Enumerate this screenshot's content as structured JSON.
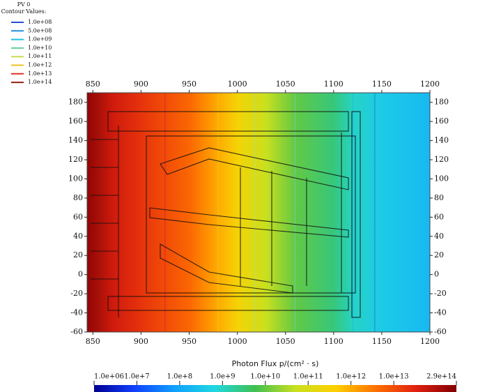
{
  "chart_data": {
    "type": "contour",
    "legend_title": "PV 0",
    "legend_subtitle": "Contour Values:",
    "contours": [
      {
        "value": 100000000,
        "label": "1.0e+08",
        "color": "#2050d0"
      },
      {
        "value": 500000000,
        "label": "5.0e+08",
        "color": "#2090e0"
      },
      {
        "value": 1000000000,
        "label": "1.0e+09",
        "color": "#20c0e0"
      },
      {
        "value": 10000000000,
        "label": "1.0e+10",
        "color": "#60d0a0"
      },
      {
        "value": 100000000000,
        "label": "1.0e+11",
        "color": "#c0e050"
      },
      {
        "value": 1000000000000,
        "label": "1.0e+12",
        "color": "#f0c020"
      },
      {
        "value": 10000000000000,
        "label": "1.0e+13",
        "color": "#e03020"
      },
      {
        "value": 100000000000000,
        "label": "1.0e+14",
        "color": "#902010"
      }
    ],
    "x": [
      844,
      870,
      900,
      950,
      980,
      1000,
      1030,
      1060,
      1100,
      1120,
      1150,
      1200
    ],
    "values": [
      200000000000000,
      50000000000000,
      20000000000000,
      5000000000000,
      1000000000000,
      300000000000,
      50000000000,
      10000000000,
      3000000000,
      1000000000,
      400000000,
      200000000
    ],
    "xlim": [
      844,
      1200
    ],
    "ylim": [
      -60,
      190
    ],
    "xticks": [
      850,
      900,
      950,
      1000,
      1050,
      1100,
      1150,
      1200
    ],
    "yticks": [
      -60,
      -40,
      -20,
      0,
      20,
      40,
      60,
      80,
      100,
      120,
      140,
      160,
      180
    ],
    "colorbar_title": "Photon Flux p/(cm² · s)",
    "zlim": [
      1000000,
      290000000000000
    ],
    "zscale": "log",
    "zticks": [
      {
        "value": 1000000,
        "label": "1.0e+06"
      },
      {
        "value": 10000000,
        "label": "1.0e+7"
      },
      {
        "value": 100000000,
        "label": "1.0e+8"
      },
      {
        "value": 1000000000,
        "label": "1.0e+9"
      },
      {
        "value": 10000000000,
        "label": "1.0e+10"
      },
      {
        "value": 100000000000,
        "label": "1.0e+11"
      },
      {
        "value": 1000000000000,
        "label": "1.0e+12"
      },
      {
        "value": 10000000000000,
        "label": "1.0e+13"
      },
      {
        "value": 290000000000000,
        "label": "2.9e+14"
      }
    ],
    "colormap": [
      "#000090",
      "#1040ff",
      "#10a0ff",
      "#20d8e0",
      "#40c050",
      "#c8e020",
      "#ffd000",
      "#ff7000",
      "#e02010",
      "#800000"
    ]
  }
}
